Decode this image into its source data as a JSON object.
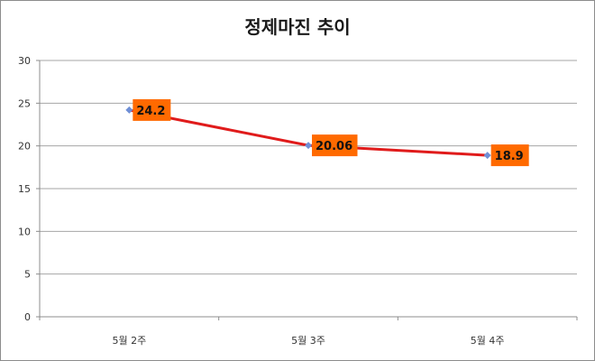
{
  "chart_data": {
    "type": "line",
    "title": "정제마진 추이",
    "xlabel": "",
    "ylabel": "",
    "categories": [
      "5월 2주",
      "5월 3주",
      "5월 4주"
    ],
    "series": [
      {
        "name": "정제마진",
        "values": [
          24.2,
          20.06,
          18.9
        ],
        "color": "#e01b1b",
        "marker_color": "#6f8fd6"
      }
    ],
    "data_labels": [
      "24.2",
      "20.06",
      "18.9"
    ],
    "data_label_bg": "#ff6a00",
    "ylim": [
      0,
      30
    ],
    "yticks": [
      0,
      5,
      10,
      15,
      20,
      25,
      30
    ],
    "ytick_labels": [
      "0",
      "5",
      "10",
      "15",
      "20",
      "25",
      "30"
    ],
    "grid": true,
    "legend": "none"
  }
}
